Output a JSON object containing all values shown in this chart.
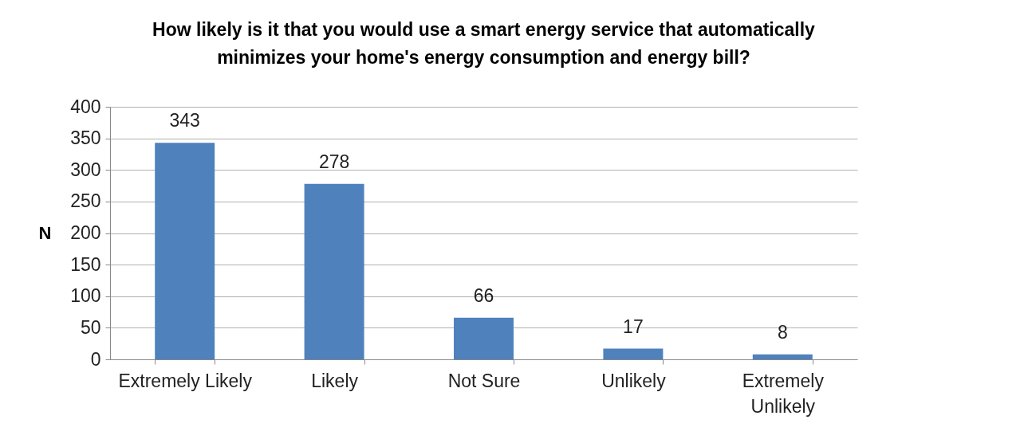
{
  "chart_data": {
    "type": "bar",
    "title": "How likely is it that you would use a smart energy service  that automatically\nminimizes your home's energy consumption and energy bill?",
    "ylabel": "N",
    "categories": [
      "Extremely Likely",
      "Likely",
      "Not Sure",
      "Unlikely",
      "Extremely Unlikely"
    ],
    "values": [
      343,
      278,
      66,
      17,
      8
    ],
    "color": "#4f81bd",
    "ylim": [
      0,
      400
    ],
    "yticks": [
      0,
      50,
      100,
      150,
      200,
      250,
      300,
      350,
      400
    ],
    "grid": "y",
    "data_labels": true
  }
}
